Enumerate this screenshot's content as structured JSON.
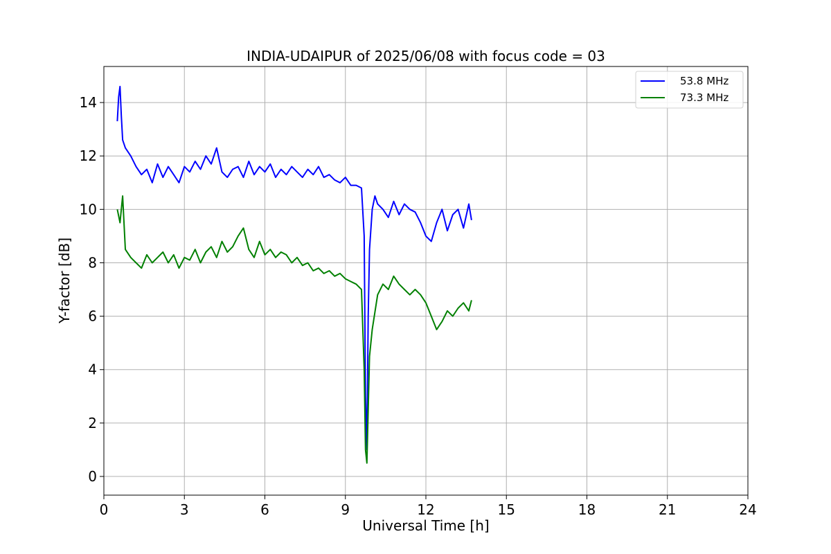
{
  "chart_data": {
    "type": "line",
    "title": "INDIA-UDAIPUR of 2025/06/08 with focus code = 03",
    "xlabel": "Universal Time [h]",
    "ylabel": "Y-factor [dB]",
    "xlim": [
      0,
      24
    ],
    "ylim": [
      -0.7,
      15.35
    ],
    "xticks": [
      0,
      3,
      6,
      9,
      12,
      15,
      18,
      21,
      24
    ],
    "yticks": [
      0,
      2,
      4,
      6,
      8,
      10,
      12,
      14
    ],
    "grid": true,
    "legend_position": "top-right",
    "series": [
      {
        "name": "53.8 MHz",
        "color": "#0000ff",
        "x": [
          0.5,
          0.55,
          0.6,
          0.65,
          0.7,
          0.8,
          1.0,
          1.2,
          1.4,
          1.6,
          1.8,
          2.0,
          2.2,
          2.4,
          2.6,
          2.8,
          3.0,
          3.2,
          3.4,
          3.6,
          3.8,
          4.0,
          4.2,
          4.4,
          4.6,
          4.8,
          5.0,
          5.2,
          5.4,
          5.6,
          5.8,
          6.0,
          6.2,
          6.4,
          6.6,
          6.8,
          7.0,
          7.2,
          7.4,
          7.6,
          7.8,
          8.0,
          8.2,
          8.4,
          8.6,
          8.8,
          9.0,
          9.2,
          9.4,
          9.6,
          9.7,
          9.75,
          9.8,
          9.85,
          9.9,
          10.0,
          10.1,
          10.2,
          10.4,
          10.6,
          10.8,
          11.0,
          11.2,
          11.4,
          11.6,
          11.8,
          12.0,
          12.2,
          12.4,
          12.6,
          12.8,
          13.0,
          13.2,
          13.4,
          13.6,
          13.7
        ],
        "values": [
          13.3,
          14.2,
          14.6,
          13.5,
          12.6,
          12.3,
          12.0,
          11.6,
          11.3,
          11.5,
          11.0,
          11.7,
          11.2,
          11.6,
          11.3,
          11.0,
          11.6,
          11.4,
          11.8,
          11.5,
          12.0,
          11.7,
          12.3,
          11.4,
          11.2,
          11.5,
          11.6,
          11.2,
          11.8,
          11.3,
          11.6,
          11.4,
          11.7,
          11.2,
          11.5,
          11.3,
          11.6,
          11.4,
          11.2,
          11.5,
          11.3,
          11.6,
          11.2,
          11.3,
          11.1,
          11.0,
          11.2,
          10.9,
          10.9,
          10.8,
          9.0,
          3.0,
          1.0,
          6.0,
          8.5,
          10.0,
          10.5,
          10.2,
          10.0,
          9.7,
          10.3,
          9.8,
          10.2,
          10.0,
          9.9,
          9.5,
          9.0,
          8.8,
          9.5,
          10.0,
          9.2,
          9.8,
          10.0,
          9.3,
          10.2,
          9.6
        ]
      },
      {
        "name": "73.3 MHz",
        "color": "#008000",
        "x": [
          0.5,
          0.6,
          0.7,
          0.8,
          1.0,
          1.2,
          1.4,
          1.6,
          1.8,
          2.0,
          2.2,
          2.4,
          2.6,
          2.8,
          3.0,
          3.2,
          3.4,
          3.6,
          3.8,
          4.0,
          4.2,
          4.4,
          4.6,
          4.8,
          5.0,
          5.2,
          5.4,
          5.6,
          5.8,
          6.0,
          6.2,
          6.4,
          6.6,
          6.8,
          7.0,
          7.2,
          7.4,
          7.6,
          7.8,
          8.0,
          8.2,
          8.4,
          8.6,
          8.8,
          9.0,
          9.2,
          9.4,
          9.6,
          9.7,
          9.75,
          9.8,
          9.85,
          9.9,
          10.0,
          10.2,
          10.4,
          10.6,
          10.8,
          11.0,
          11.2,
          11.4,
          11.6,
          11.8,
          12.0,
          12.2,
          12.4,
          12.6,
          12.8,
          13.0,
          13.2,
          13.4,
          13.6,
          13.7
        ],
        "values": [
          10.0,
          9.5,
          10.5,
          8.5,
          8.2,
          8.0,
          7.8,
          8.3,
          8.0,
          8.2,
          8.4,
          8.0,
          8.3,
          7.8,
          8.2,
          8.1,
          8.5,
          8.0,
          8.4,
          8.6,
          8.2,
          8.8,
          8.4,
          8.6,
          9.0,
          9.3,
          8.5,
          8.2,
          8.8,
          8.3,
          8.5,
          8.2,
          8.4,
          8.3,
          8.0,
          8.2,
          7.9,
          8.0,
          7.7,
          7.8,
          7.6,
          7.7,
          7.5,
          7.6,
          7.4,
          7.3,
          7.2,
          7.0,
          4.0,
          1.0,
          0.5,
          2.5,
          4.5,
          5.5,
          6.8,
          7.2,
          7.0,
          7.5,
          7.2,
          7.0,
          6.8,
          7.0,
          6.8,
          6.5,
          6.0,
          5.5,
          5.8,
          6.2,
          6.0,
          6.3,
          6.5,
          6.2,
          6.6
        ]
      }
    ]
  }
}
